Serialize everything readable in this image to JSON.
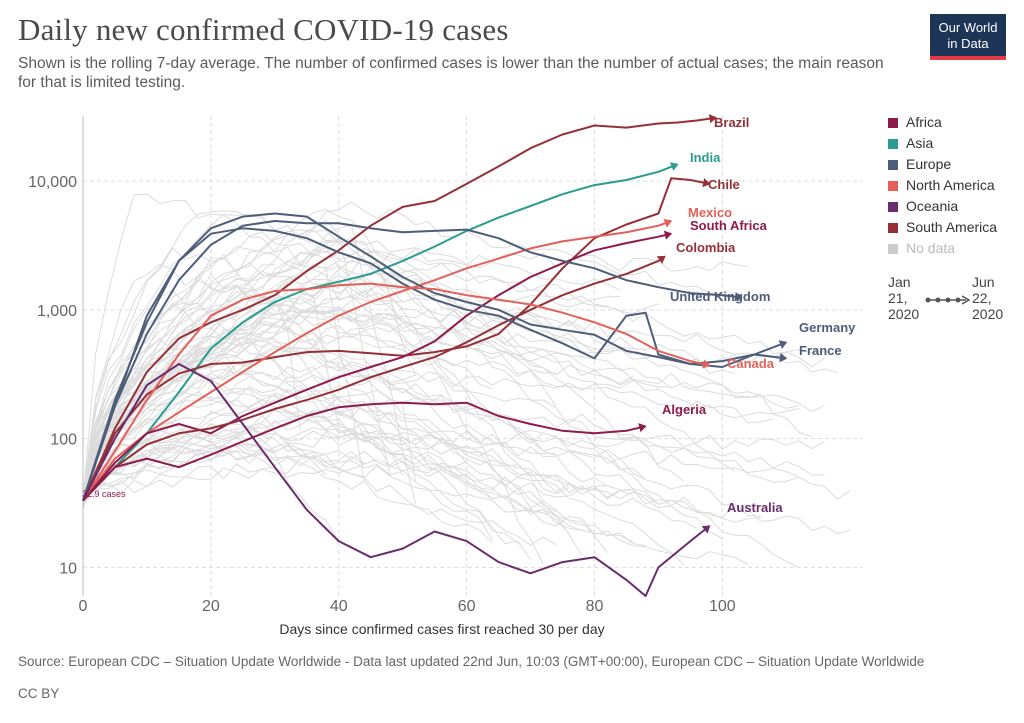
{
  "header": {
    "title": "Daily new confirmed COVID-19 cases",
    "subtitle": "Shown is the rolling 7-day average. The number of confirmed cases is lower than the number of actual cases; the main reason for that is limited testing."
  },
  "logo": {
    "line1": "Our World",
    "line2": "in Data",
    "bg": "#1d3557",
    "accent": "#e63946"
  },
  "legend": [
    {
      "label": "Africa",
      "color": "#8e1b4c"
    },
    {
      "label": "Asia",
      "color": "#2a9d8f"
    },
    {
      "label": "Europe",
      "color": "#4e5d7a"
    },
    {
      "label": "North America",
      "color": "#e4605a"
    },
    {
      "label": "Oceania",
      "color": "#6b2c6e"
    },
    {
      "label": "South America",
      "color": "#953036"
    },
    {
      "label": "No data",
      "color": "#cccccc"
    }
  ],
  "timeline": {
    "start_month": "Jan",
    "start_day": "21,",
    "start_year": "2020",
    "end_month": "Jun",
    "end_day": "22,",
    "end_year": "2020"
  },
  "footer": {
    "source": "Source: European CDC – Situation Update Worldwide - Data last updated 22nd Jun, 10:03 (GMT+00:00), European CDC – Situation Update Worldwide",
    "license": "CC BY"
  },
  "chart_data": {
    "type": "line",
    "y_scale": "log",
    "xlabel": "Days since confirmed cases first reached 30 per day",
    "ylabel": "",
    "xlim": [
      0,
      122
    ],
    "ylim": [
      6,
      32000
    ],
    "x_ticks": [
      0,
      20,
      40,
      60,
      80,
      100
    ],
    "y_ticks": [
      10,
      100,
      1000,
      10000
    ],
    "y_tick_labels": [
      "10",
      "100",
      "1,000",
      "10,000"
    ],
    "grid": true,
    "start_annotation": "32.9 cases",
    "series": [
      {
        "name": "Brazil",
        "color": "#953036",
        "x": [
          0,
          5,
          10,
          15,
          20,
          25,
          30,
          35,
          40,
          45,
          50,
          55,
          60,
          65,
          70,
          75,
          80,
          85,
          90,
          93,
          96,
          99
        ],
        "y": [
          33,
          120,
          330,
          600,
          800,
          1000,
          1300,
          2000,
          2900,
          4500,
          6300,
          7000,
          9500,
          13000,
          18000,
          23000,
          27000,
          26000,
          28000,
          28500,
          29500,
          31000
        ]
      },
      {
        "name": "India",
        "color": "#2a9d8f",
        "x": [
          0,
          5,
          10,
          15,
          20,
          25,
          30,
          35,
          40,
          45,
          50,
          55,
          60,
          65,
          70,
          75,
          80,
          85,
          90,
          93
        ],
        "y": [
          33,
          60,
          110,
          230,
          500,
          800,
          1150,
          1450,
          1650,
          1900,
          2400,
          3100,
          4100,
          5200,
          6400,
          7900,
          9300,
          10200,
          11800,
          13500
        ]
      },
      {
        "name": "Chile",
        "color": "#953036",
        "x": [
          0,
          5,
          10,
          15,
          20,
          25,
          30,
          35,
          40,
          45,
          50,
          55,
          60,
          65,
          70,
          75,
          80,
          85,
          90,
          92,
          95,
          98
        ],
        "y": [
          33,
          110,
          220,
          320,
          380,
          390,
          430,
          470,
          480,
          460,
          440,
          470,
          520,
          650,
          1100,
          2100,
          3600,
          4600,
          5600,
          10500,
          10200,
          9500
        ]
      },
      {
        "name": "Mexico",
        "color": "#e4605a",
        "x": [
          0,
          5,
          10,
          15,
          20,
          25,
          30,
          35,
          40,
          45,
          50,
          55,
          60,
          65,
          70,
          75,
          80,
          85,
          90,
          92
        ],
        "y": [
          33,
          70,
          110,
          160,
          230,
          330,
          470,
          660,
          900,
          1150,
          1400,
          1700,
          2100,
          2500,
          3000,
          3400,
          3700,
          4000,
          4500,
          4900
        ]
      },
      {
        "name": "South Africa",
        "color": "#8e1b4c",
        "x": [
          0,
          5,
          10,
          15,
          20,
          25,
          30,
          35,
          40,
          45,
          50,
          55,
          60,
          65,
          70,
          75,
          80,
          85,
          90,
          92
        ],
        "y": [
          33,
          65,
          110,
          130,
          110,
          150,
          190,
          240,
          300,
          360,
          430,
          570,
          900,
          1300,
          1800,
          2300,
          2900,
          3300,
          3700,
          3900
        ]
      },
      {
        "name": "Colombia",
        "color": "#953036",
        "x": [
          0,
          5,
          10,
          15,
          20,
          25,
          30,
          35,
          40,
          45,
          50,
          55,
          60,
          65,
          70,
          75,
          80,
          85,
          90,
          91
        ],
        "y": [
          33,
          60,
          90,
          110,
          120,
          140,
          170,
          200,
          240,
          300,
          360,
          430,
          560,
          760,
          1000,
          1300,
          1600,
          1900,
          2400,
          2600
        ]
      },
      {
        "name": "United Kingdom",
        "color": "#4e5d7a",
        "x": [
          0,
          5,
          10,
          15,
          20,
          25,
          30,
          35,
          40,
          45,
          50,
          55,
          60,
          65,
          70,
          75,
          80,
          85,
          90,
          95,
          100,
          103
        ],
        "y": [
          33,
          180,
          650,
          1700,
          3200,
          4500,
          4900,
          4700,
          4700,
          4300,
          4000,
          4100,
          4200,
          3600,
          2800,
          2400,
          2100,
          1700,
          1500,
          1350,
          1300,
          1250
        ]
      },
      {
        "name": "Germany",
        "color": "#4e5d7a",
        "x": [
          0,
          5,
          10,
          15,
          20,
          25,
          30,
          35,
          40,
          45,
          50,
          55,
          60,
          65,
          70,
          75,
          80,
          85,
          90,
          95,
          100,
          105,
          110
        ],
        "y": [
          33,
          180,
          900,
          2400,
          4300,
          5300,
          5600,
          5300,
          3700,
          2600,
          1800,
          1350,
          1150,
          1000,
          770,
          700,
          640,
          480,
          430,
          380,
          360,
          450,
          560
        ]
      },
      {
        "name": "France",
        "color": "#4e5d7a",
        "x": [
          0,
          5,
          10,
          15,
          20,
          25,
          30,
          35,
          40,
          45,
          50,
          55,
          60,
          65,
          70,
          75,
          80,
          85,
          88,
          90,
          95,
          100,
          105,
          110
        ],
        "y": [
          33,
          200,
          800,
          2400,
          3900,
          4300,
          4100,
          3600,
          2800,
          2300,
          1600,
          1200,
          1000,
          900,
          700,
          550,
          420,
          900,
          950,
          450,
          380,
          400,
          450,
          420
        ]
      },
      {
        "name": "Canada",
        "color": "#e4605a",
        "x": [
          0,
          5,
          10,
          15,
          20,
          25,
          30,
          35,
          40,
          45,
          50,
          55,
          60,
          65,
          70,
          75,
          80,
          85,
          90,
          95,
          98
        ],
        "y": [
          33,
          80,
          200,
          450,
          900,
          1200,
          1400,
          1450,
          1550,
          1600,
          1500,
          1450,
          1300,
          1200,
          1100,
          950,
          800,
          650,
          480,
          400,
          370
        ]
      },
      {
        "name": "Algeria",
        "color": "#8e1b4c",
        "x": [
          0,
          5,
          10,
          15,
          20,
          25,
          30,
          35,
          40,
          45,
          50,
          55,
          60,
          65,
          70,
          75,
          80,
          85,
          88
        ],
        "y": [
          33,
          60,
          70,
          60,
          75,
          95,
          120,
          150,
          175,
          185,
          190,
          185,
          190,
          150,
          130,
          115,
          110,
          115,
          125
        ]
      },
      {
        "name": "Australia",
        "color": "#6b2c6e",
        "x": [
          0,
          5,
          10,
          15,
          20,
          25,
          30,
          35,
          40,
          45,
          50,
          55,
          60,
          65,
          70,
          75,
          80,
          85,
          88,
          90,
          95,
          98
        ],
        "y": [
          33,
          100,
          260,
          380,
          280,
          130,
          60,
          28,
          16,
          12,
          14,
          19,
          16,
          11,
          9,
          11,
          12,
          8,
          6,
          10,
          16,
          21
        ]
      }
    ]
  }
}
